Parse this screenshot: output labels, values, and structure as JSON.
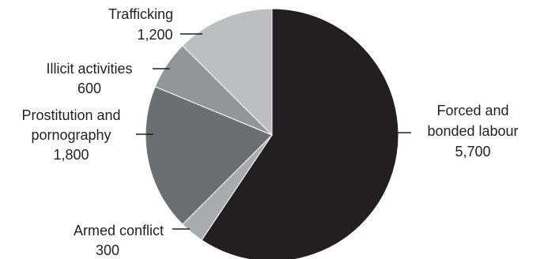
{
  "chart_data": {
    "type": "pie",
    "title": "",
    "slices": [
      {
        "label_lines": [
          "Forced and",
          "bonded labour"
        ],
        "value_text": "5,700",
        "value": 5700,
        "color": "#231f20"
      },
      {
        "label_lines": [
          "Armed conflict"
        ],
        "value_text": "300",
        "value": 300,
        "color": "#a9abae"
      },
      {
        "label_lines": [
          "Prostitution and",
          "pornography"
        ],
        "value_text": "1,800",
        "value": 1800,
        "color": "#6d6e71"
      },
      {
        "label_lines": [
          "Illicit activities"
        ],
        "value_text": "600",
        "value": 600,
        "color": "#939598"
      },
      {
        "label_lines": [
          "Trafficking"
        ],
        "value_text": "1,200",
        "value": 1200,
        "color": "#bcbec0"
      }
    ],
    "slice_outline": "#ffffff",
    "leader_color": "#231f20"
  }
}
